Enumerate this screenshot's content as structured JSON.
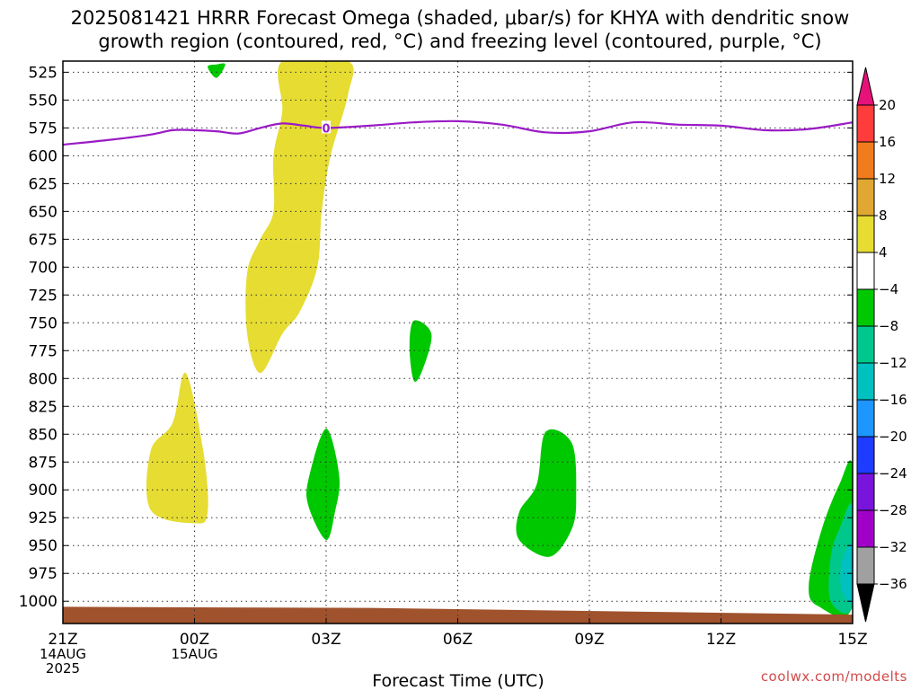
{
  "title_line1": "2025081421 HRRR Forecast Omega (shaded, μbar/s) for KHYA with dendritic snow",
  "title_line2": "growth region (contoured, red, °C) and freezing level (contoured, purple, °C)",
  "watermark": "coolwx.com/modelts",
  "chart_data": {
    "type": "contour",
    "xlabel": "Forecast Time (UTC)",
    "y_ticks": [
      525,
      550,
      575,
      600,
      625,
      650,
      675,
      700,
      725,
      750,
      775,
      800,
      825,
      850,
      875,
      900,
      925,
      950,
      975,
      1000
    ],
    "ylim": [
      1020,
      515
    ],
    "ylabel_unit": "hPa",
    "x_ticks": [
      {
        "hour": 0,
        "lines": [
          "21Z",
          "14AUG",
          "2025"
        ]
      },
      {
        "hour": 3,
        "lines": [
          "00Z",
          "15AUG"
        ]
      },
      {
        "hour": 6,
        "lines": [
          "03Z"
        ]
      },
      {
        "hour": 9,
        "lines": [
          "06Z"
        ]
      },
      {
        "hour": 12,
        "lines": [
          "09Z"
        ]
      },
      {
        "hour": 15,
        "lines": [
          "12Z"
        ]
      },
      {
        "hour": 18,
        "lines": [
          "15Z"
        ]
      }
    ],
    "xlim": [
      0,
      18
    ],
    "grid": true,
    "freezing_level": {
      "color": "#9a1bc6",
      "label": "0",
      "label_hour": 6,
      "points": [
        [
          0,
          590
        ],
        [
          1,
          586
        ],
        [
          2,
          581
        ],
        [
          2.5,
          577
        ],
        [
          3,
          577
        ],
        [
          3.5,
          578
        ],
        [
          4,
          580
        ],
        [
          4.5,
          575
        ],
        [
          5,
          571
        ],
        [
          5.5,
          573
        ],
        [
          6,
          575
        ],
        [
          7,
          573
        ],
        [
          8,
          570
        ],
        [
          9,
          569
        ],
        [
          10,
          572
        ],
        [
          11,
          579
        ],
        [
          12,
          578
        ],
        [
          13,
          570
        ],
        [
          14,
          572
        ],
        [
          15,
          573
        ],
        [
          16,
          577
        ],
        [
          17,
          576
        ],
        [
          18,
          570
        ]
      ]
    },
    "surface": {
      "color": "#a0522d",
      "top_start": 1005,
      "top_end": 1012,
      "bottom": 1020
    },
    "omega_regions": [
      {
        "level": "4 to 8",
        "color": "#e6dc32",
        "points": [
          [
            5,
            515
          ],
          [
            6.5,
            515
          ],
          [
            6.5,
            545
          ],
          [
            6.1,
            600
          ],
          [
            5.9,
            650
          ],
          [
            5.8,
            700
          ],
          [
            5.4,
            740
          ],
          [
            5,
            760
          ],
          [
            4.5,
            795
          ],
          [
            4.2,
            760
          ],
          [
            4.2,
            705
          ],
          [
            4.5,
            675
          ],
          [
            4.8,
            650
          ],
          [
            4.8,
            600
          ],
          [
            5.0,
            560
          ]
        ]
      },
      {
        "level": "4 to 8",
        "color": "#e6dc32",
        "points": [
          [
            2.8,
            795
          ],
          [
            3.2,
            865
          ],
          [
            3.3,
            920
          ],
          [
            3.0,
            930
          ],
          [
            2,
            918
          ],
          [
            2,
            865
          ],
          [
            2.5,
            840
          ]
        ]
      },
      {
        "level": "-8 to -4",
        "color": "#00c800",
        "points": [
          [
            3.5,
            518
          ],
          [
            3.7,
            518
          ],
          [
            3.5,
            530
          ],
          [
            3.3,
            520
          ]
        ]
      },
      {
        "level": "-8 to -4",
        "color": "#00c800",
        "points": [
          [
            8,
            748
          ],
          [
            8.4,
            760
          ],
          [
            8.2,
            792
          ],
          [
            8,
            802
          ],
          [
            7.9,
            772
          ]
        ]
      },
      {
        "level": "-8 to -4",
        "color": "#00c800",
        "points": [
          [
            6,
            845
          ],
          [
            6.3,
            888
          ],
          [
            6.2,
            920
          ],
          [
            6,
            945
          ],
          [
            5.6,
            915
          ],
          [
            5.6,
            890
          ]
        ]
      },
      {
        "level": "-8 to -4",
        "color": "#00c800",
        "points": [
          [
            11,
            848
          ],
          [
            11.6,
            858
          ],
          [
            11.7,
            905
          ],
          [
            11.6,
            935
          ],
          [
            11.1,
            960
          ],
          [
            10.4,
            945
          ],
          [
            10.4,
            920
          ],
          [
            10.8,
            895
          ]
        ]
      },
      {
        "level": "-8 to -4",
        "color": "#00c800",
        "points": [
          [
            18,
            880
          ],
          [
            18,
            1004
          ],
          [
            17.2,
            1004
          ],
          [
            17,
            985
          ],
          [
            17.3,
            935
          ],
          [
            17.7,
            895
          ]
        ]
      },
      {
        "level": "-12 to -8",
        "color": "#00c88c",
        "points": [
          [
            18,
            915
          ],
          [
            18,
            1004
          ],
          [
            17.5,
            1000
          ],
          [
            17.5,
            960
          ],
          [
            17.7,
            935
          ]
        ]
      },
      {
        "level": "-16 to -12",
        "color": "#00c0c0",
        "points": [
          [
            18,
            950
          ],
          [
            18,
            1000
          ],
          [
            17.75,
            990
          ],
          [
            17.75,
            965
          ]
        ]
      }
    ],
    "colorbar": {
      "labels": [
        "20",
        "16",
        "12",
        "8",
        "4",
        "−4",
        "−8",
        "−12",
        "−16",
        "−20",
        "−24",
        "−28",
        "−32",
        "−36"
      ],
      "colors": [
        "#ff3c3c",
        "#f07c1e",
        "#e0a832",
        "#e6dc32",
        "#ffffff",
        "#00c800",
        "#00c88c",
        "#00c0c0",
        "#1e96ff",
        "#1e3cff",
        "#7814dc",
        "#a000c8",
        "#a0a0a0"
      ],
      "top_color": "#e6127a",
      "bottom_color": "#000000"
    }
  }
}
